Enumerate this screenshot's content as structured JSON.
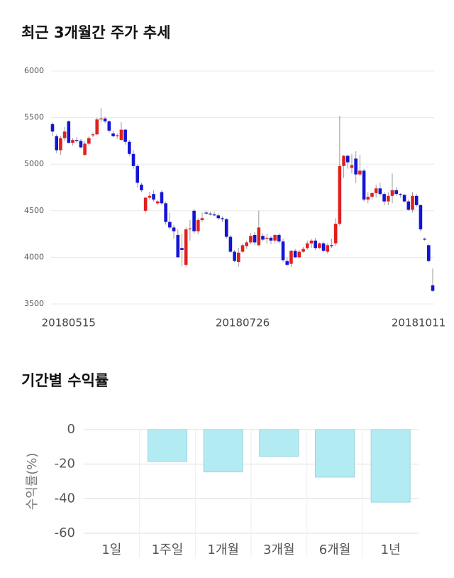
{
  "chart_data": [
    {
      "type": "candlestick",
      "title": "최근 3개월간 주가 추세",
      "categories": [
        null,
        null,
        null,
        null,
        "20180515",
        null,
        null,
        null,
        null,
        null,
        null,
        null,
        null,
        null,
        null,
        null,
        null,
        null,
        null,
        null,
        null,
        null,
        null,
        null,
        null,
        null,
        null,
        null,
        null,
        null,
        null,
        null,
        null,
        null,
        null,
        null,
        null,
        null,
        null,
        null,
        null,
        null,
        null,
        null,
        null,
        null,
        null,
        "20180726",
        null,
        null,
        null,
        null,
        null,
        null,
        null,
        null,
        null,
        null,
        null,
        null,
        null,
        null,
        null,
        null,
        null,
        null,
        null,
        null,
        null,
        null,
        null,
        null,
        null,
        null,
        null,
        null,
        null,
        null,
        null,
        null,
        null,
        null,
        null,
        null,
        null,
        null,
        null,
        null,
        null,
        null,
        null,
        "20181011",
        null,
        null,
        null
      ],
      "ohlc": [
        [
          5430,
          5450,
          5300,
          5350
        ],
        [
          5300,
          5320,
          5120,
          5150
        ],
        [
          5150,
          5300,
          5100,
          5280
        ],
        [
          5280,
          5400,
          5250,
          5350
        ],
        [
          5460,
          5470,
          5220,
          5230
        ],
        [
          5230,
          5280,
          5200,
          5260
        ],
        [
          5260,
          5290,
          5230,
          5250
        ],
        [
          5250,
          5270,
          5170,
          5180
        ],
        [
          5100,
          5250,
          5090,
          5220
        ],
        [
          5220,
          5300,
          5200,
          5280
        ],
        [
          5310,
          5340,
          5290,
          5320
        ],
        [
          5320,
          5500,
          5310,
          5480
        ],
        [
          5480,
          5600,
          5450,
          5490
        ],
        [
          5490,
          5510,
          5440,
          5460
        ],
        [
          5460,
          5470,
          5340,
          5360
        ],
        [
          5330,
          5360,
          5290,
          5300
        ],
        [
          5300,
          5330,
          5270,
          5310
        ],
        [
          5260,
          5450,
          5250,
          5370
        ],
        [
          5370,
          5380,
          5210,
          5240
        ],
        [
          5240,
          5260,
          5090,
          5110
        ],
        [
          5110,
          5150,
          4950,
          4980
        ],
        [
          4980,
          5000,
          4750,
          4800
        ],
        [
          4780,
          4800,
          4700,
          4720
        ],
        [
          4500,
          4650,
          4480,
          4640
        ],
        [
          4640,
          4700,
          4620,
          4660
        ],
        [
          4680,
          4720,
          4600,
          4620
        ],
        [
          4580,
          4620,
          4560,
          4600
        ],
        [
          4700,
          4720,
          4560,
          4580
        ],
        [
          4580,
          4600,
          4350,
          4380
        ],
        [
          4380,
          4480,
          4300,
          4320
        ],
        [
          4320,
          4350,
          4200,
          4280
        ],
        [
          4240,
          4300,
          4000,
          4000
        ],
        [
          4100,
          4250,
          3900,
          4080
        ],
        [
          3920,
          4320,
          3900,
          4300
        ],
        [
          4300,
          4400,
          4180,
          4310
        ],
        [
          4500,
          4520,
          4250,
          4280
        ],
        [
          4280,
          4420,
          4250,
          4400
        ],
        [
          4400,
          4480,
          4380,
          4420
        ],
        [
          4480,
          4500,
          4460,
          4470
        ],
        [
          4470,
          4490,
          4450,
          4460
        ],
        [
          4460,
          4490,
          4440,
          4450
        ],
        [
          4450,
          4470,
          4400,
          4420
        ],
        [
          4420,
          4440,
          4380,
          4410
        ],
        [
          4410,
          4420,
          4200,
          4220
        ],
        [
          4220,
          4240,
          4050,
          4060
        ],
        [
          4060,
          4080,
          3950,
          3960
        ],
        [
          3950,
          4100,
          3900,
          4050
        ],
        [
          4060,
          4150,
          4050,
          4130
        ],
        [
          4120,
          4180,
          4090,
          4160
        ],
        [
          4160,
          4260,
          4140,
          4230
        ],
        [
          4240,
          4270,
          4130,
          4160
        ],
        [
          4130,
          4500,
          4120,
          4320
        ],
        [
          4230,
          4260,
          4170,
          4190
        ],
        [
          4200,
          4250,
          4150,
          4210
        ],
        [
          4210,
          4230,
          4140,
          4180
        ],
        [
          4180,
          4250,
          4150,
          4240
        ],
        [
          4240,
          4260,
          4150,
          4170
        ],
        [
          4170,
          4200,
          3950,
          3970
        ],
        [
          3960,
          4000,
          3900,
          3920
        ],
        [
          3930,
          4080,
          3900,
          4070
        ],
        [
          4070,
          4090,
          3990,
          4000
        ],
        [
          4000,
          4080,
          3990,
          4060
        ],
        [
          4060,
          4110,
          4050,
          4090
        ],
        [
          4100,
          4180,
          4080,
          4150
        ],
        [
          4150,
          4200,
          4100,
          4180
        ],
        [
          4180,
          4210,
          4080,
          4100
        ],
        [
          4100,
          4160,
          4090,
          4150
        ],
        [
          4150,
          4170,
          4060,
          4070
        ],
        [
          4060,
          4150,
          4040,
          4130
        ],
        [
          4130,
          4200,
          4100,
          4120
        ],
        [
          4150,
          4420,
          4120,
          4360
        ],
        [
          4360,
          5520,
          4340,
          4980
        ],
        [
          4980,
          5100,
          4850,
          5090
        ],
        [
          5090,
          5100,
          4950,
          5020
        ],
        [
          4960,
          5110,
          4900,
          4990
        ],
        [
          5060,
          5140,
          4800,
          4890
        ],
        [
          4890,
          5100,
          4870,
          4930
        ],
        [
          4930,
          4950,
          4600,
          4620
        ],
        [
          4620,
          4700,
          4580,
          4650
        ],
        [
          4650,
          4700,
          4620,
          4690
        ],
        [
          4690,
          4780,
          4640,
          4740
        ],
        [
          4740,
          4800,
          4660,
          4680
        ],
        [
          4680,
          4700,
          4560,
          4600
        ],
        [
          4600,
          4700,
          4560,
          4660
        ],
        [
          4660,
          4900,
          4580,
          4720
        ],
        [
          4720,
          4750,
          4660,
          4680
        ],
        [
          4680,
          4690,
          4640,
          4670
        ],
        [
          4670,
          4680,
          4590,
          4600
        ],
        [
          4600,
          4620,
          4500,
          4510
        ],
        [
          4510,
          4700,
          4480,
          4660
        ],
        [
          4660,
          4680,
          4540,
          4560
        ],
        [
          4560,
          4570,
          4280,
          4300
        ],
        [
          4200,
          4210,
          4180,
          4190
        ],
        [
          4130,
          4140,
          3950,
          3960
        ],
        [
          3700,
          3880,
          3630,
          3640
        ]
      ],
      "up_color": "#e0201e",
      "down_color": "#1414d6",
      "ylim": [
        3500,
        6000
      ],
      "yticks": [
        3500,
        4000,
        4500,
        5000,
        5500,
        6000
      ],
      "grid": true
    },
    {
      "type": "bar",
      "title": "기간별 수익률",
      "ylabel": "수익률(%)",
      "categories": [
        "1일",
        "1주일",
        "1개월",
        "3개월",
        "6개월",
        "1년"
      ],
      "values": [
        0,
        -18.5,
        -24.5,
        -15.5,
        -27.5,
        -42
      ],
      "color": "#b3ebf3",
      "ylim": [
        -60,
        0
      ],
      "yticks": [
        0,
        -20,
        -40,
        -60
      ],
      "grid": true
    }
  ]
}
